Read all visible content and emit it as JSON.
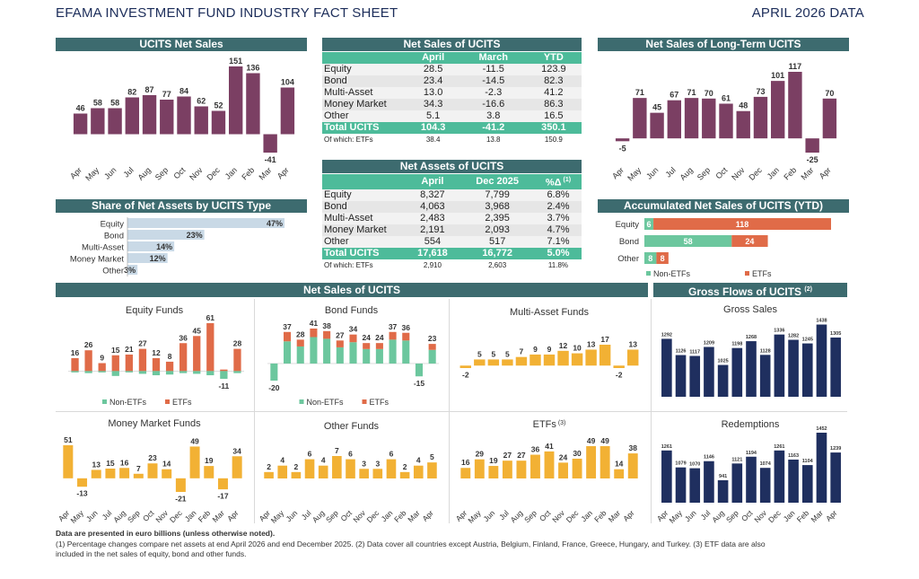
{
  "header": {
    "title": "EFAMA INVESTMENT FUND INDUSTRY FACT SHEET",
    "date": "APRIL 2026 DATA"
  },
  "colors": {
    "purple": "#7b3f63",
    "teal": "#3d6b6f",
    "green": "#6cc79e",
    "orange": "#e06b48",
    "yellow": "#f2b134",
    "navy": "#1f2f5f",
    "share_bar": "#c9d9e6"
  },
  "months": [
    "Apr",
    "May",
    "Jun",
    "Jul",
    "Aug",
    "Sep",
    "Oct",
    "Nov",
    "Dec",
    "Jan",
    "Feb",
    "Mar",
    "Apr"
  ],
  "ucits_net_sales": {
    "title": "UCITS Net Sales",
    "chart_data": {
      "type": "bar",
      "categories": [
        "Apr",
        "May",
        "Jun",
        "Jul",
        "Aug",
        "Sep",
        "Oct",
        "Nov",
        "Dec",
        "Jan",
        "Feb",
        "Mar",
        "Apr"
      ],
      "values": [
        46,
        58,
        58,
        82,
        87,
        77,
        84,
        62,
        52,
        151,
        136,
        -41,
        104
      ]
    }
  },
  "long_term_net_sales": {
    "title": "Net Sales of Long-Term UCITS",
    "chart_data": {
      "type": "bar",
      "categories": [
        "Apr",
        "May",
        "Jun",
        "Jul",
        "Aug",
        "Sep",
        "Oct",
        "Nov",
        "Dec",
        "Jan",
        "Feb",
        "Mar",
        "Apr"
      ],
      "values": [
        -5,
        71,
        45,
        67,
        71,
        70,
        61,
        48,
        73,
        101,
        117,
        -25,
        70
      ]
    }
  },
  "net_sales_table": {
    "title": "Net Sales of UCITS",
    "columns": [
      "",
      "April",
      "March",
      "YTD"
    ],
    "rows": [
      [
        "Equity",
        "28.5",
        "-11.5",
        "123.9"
      ],
      [
        "Bond",
        "23.4",
        "-14.5",
        "82.3"
      ],
      [
        "Multi-Asset",
        "13.0",
        "-2.3",
        "41.2"
      ],
      [
        "Money Market",
        "34.3",
        "-16.6",
        "86.3"
      ],
      [
        "Other",
        "5.1",
        "3.8",
        "16.5"
      ]
    ],
    "total": [
      "Total UCITS",
      "104.3",
      "-41.2",
      "350.1"
    ],
    "of_which": [
      "Of which: ETFs",
      "38.4",
      "13.8",
      "150.9"
    ]
  },
  "net_assets_table": {
    "title": "Net Assets of UCITS",
    "columns": [
      "",
      "April",
      "Dec 2025",
      "%Δ",
      "(1)"
    ],
    "rows": [
      [
        "Equity",
        "8,327",
        "7,799",
        "6.8%"
      ],
      [
        "Bond",
        "4,063",
        "3,968",
        "2.4%"
      ],
      [
        "Multi-Asset",
        "2,483",
        "2,395",
        "3.7%"
      ],
      [
        "Money Market",
        "2,191",
        "2,093",
        "4.7%"
      ],
      [
        "Other",
        "554",
        "517",
        "7.1%"
      ]
    ],
    "total": [
      "Total UCITS",
      "17,618",
      "16,772",
      "5.0%"
    ],
    "of_which": [
      "Of which: ETFs",
      "2,910",
      "2,603",
      "11.8%"
    ]
  },
  "share_of_net_assets": {
    "title": "Share of Net Assets by UCITS Type",
    "chart_data": {
      "type": "bar",
      "categories": [
        "Equity",
        "Bond",
        "Multi-Asset",
        "Money Market",
        "Other"
      ],
      "values": [
        47,
        23,
        14,
        12,
        3
      ],
      "labels": [
        "47%",
        "23%",
        "14%",
        "12%",
        "3%"
      ]
    }
  },
  "accumulated_net_sales": {
    "title": "Accumulated Net Sales of UCITS (YTD)",
    "chart_data": {
      "type": "bar",
      "categories": [
        "Equity",
        "Bond",
        "Other"
      ],
      "series": [
        {
          "name": "Non-ETFs",
          "values": [
            6,
            58,
            8
          ]
        },
        {
          "name": "ETFs",
          "values": [
            118,
            24,
            8
          ]
        }
      ]
    },
    "legend": [
      "Non-ETFs",
      "ETFs"
    ]
  },
  "net_sales_section_title": "Net Sales of UCITS",
  "gross_flows": {
    "title": "Gross Flows of UCITS",
    "title_note": "(2)"
  },
  "small_charts": [
    {
      "title": "Equity Funds",
      "chart_data": {
        "type": "bar",
        "categories": [
          "Apr",
          "May",
          "Jun",
          "Jul",
          "Aug",
          "Sep",
          "Oct",
          "Nov",
          "Dec",
          "Jan",
          "Feb",
          "Mar",
          "Apr"
        ],
        "totals": [
          16,
          26,
          9,
          15,
          21,
          27,
          12,
          8,
          36,
          45,
          61,
          -11,
          28
        ],
        "series": [
          {
            "name": "Non-ETFs",
            "values": [
              -2,
              -3,
              -2,
              -7,
              -2,
              -4,
              -6,
              -5,
              -3,
              -4,
              -6,
              -11,
              -3
            ]
          },
          {
            "name": "ETFs",
            "values": [
              18,
              29,
              11,
              22,
              23,
              31,
              18,
              13,
              39,
              49,
              67,
              2,
              31
            ]
          }
        ]
      },
      "legend": [
        "Non-ETFs",
        "ETFs"
      ]
    },
    {
      "title": "Bond Funds",
      "chart_data": {
        "type": "bar",
        "categories": [
          "Apr",
          "May",
          "Jun",
          "Jul",
          "Aug",
          "Sep",
          "Oct",
          "Nov",
          "Dec",
          "Jan",
          "Feb",
          "Mar",
          "Apr"
        ],
        "totals": [
          -20,
          37,
          28,
          41,
          38,
          27,
          34,
          24,
          24,
          37,
          36,
          -15,
          23
        ],
        "series": [
          {
            "name": "Non-ETFs",
            "values": [
              -20,
              26,
              20,
              31,
              29,
              19,
              25,
              17,
              17,
              28,
              27,
              -15,
              16
            ]
          },
          {
            "name": "ETFs",
            "values": [
              0,
              11,
              8,
              10,
              9,
              8,
              9,
              7,
              7,
              9,
              9,
              0,
              7
            ]
          }
        ]
      },
      "legend": [
        "Non-ETFs",
        "ETFs"
      ]
    },
    {
      "title": "Multi-Asset Funds",
      "chart_data": {
        "type": "bar",
        "categories": [
          "Apr",
          "May",
          "Jun",
          "Jul",
          "Aug",
          "Sep",
          "Oct",
          "Nov",
          "Dec",
          "Jan",
          "Feb",
          "Mar",
          "Apr"
        ],
        "values": [
          -2,
          5,
          5,
          5,
          7,
          9,
          9,
          12,
          10,
          13,
          17,
          -2,
          13
        ]
      }
    },
    {
      "title": "Money Market Funds",
      "chart_data": {
        "type": "bar",
        "categories": [
          "Apr",
          "May",
          "Jun",
          "Jul",
          "Aug",
          "Sep",
          "Oct",
          "Nov",
          "Dec",
          "Jan",
          "Feb",
          "Mar",
          "Apr"
        ],
        "values": [
          51,
          -13,
          13,
          15,
          16,
          7,
          23,
          14,
          -21,
          49,
          19,
          -17,
          34
        ]
      }
    },
    {
      "title": "Other Funds",
      "chart_data": {
        "type": "bar",
        "categories": [
          "Apr",
          "May",
          "Jun",
          "Jul",
          "Aug",
          "Sep",
          "Oct",
          "Nov",
          "Dec",
          "Jan",
          "Feb",
          "Mar",
          "Apr"
        ],
        "values": [
          2,
          4,
          2,
          6,
          4,
          7,
          6,
          3,
          3,
          6,
          2,
          4,
          5
        ]
      }
    },
    {
      "title": "ETFs",
      "title_note": "(3)",
      "chart_data": {
        "type": "bar",
        "categories": [
          "Apr",
          "May",
          "Jun",
          "Jul",
          "Aug",
          "Sep",
          "Oct",
          "Nov",
          "Dec",
          "Jan",
          "Feb",
          "Mar",
          "Apr"
        ],
        "values": [
          16,
          29,
          19,
          27,
          27,
          36,
          41,
          24,
          30,
          49,
          49,
          14,
          38
        ]
      }
    },
    {
      "title": "Gross Sales",
      "chart_data": {
        "type": "bar",
        "categories": [
          "Apr",
          "May",
          "Jun",
          "Jul",
          "Aug",
          "Sep",
          "Oct",
          "Nov",
          "Dec",
          "Jan",
          "Feb",
          "Mar",
          "Apr"
        ],
        "values": [
          1292,
          1126,
          1117,
          1209,
          1025,
          1198,
          1268,
          1128,
          1336,
          1282,
          1245,
          1438,
          1305
        ]
      }
    },
    {
      "title": "Redemptions",
      "chart_data": {
        "type": "bar",
        "categories": [
          "Apr",
          "May",
          "Jun",
          "Jul",
          "Aug",
          "Sep",
          "Oct",
          "Nov",
          "Dec",
          "Jan",
          "Feb",
          "Mar",
          "Apr"
        ],
        "values": [
          1261,
          1079,
          1070,
          1146,
          941,
          1121,
          1194,
          1074,
          1261,
          1163,
          1104,
          1452,
          1239
        ]
      }
    }
  ],
  "footer": {
    "note_bold": "Data are presented in euro billions (unless otherwise noted).",
    "note_1": "(1) Percentage changes compare net assets at end April 2026 and end December 2025. (2) Data cover all countries except Austria, Belgium, Finland, France, Greece, Hungary, and Turkey. (3) ETF data are also",
    "note_2": "included in the net sales of equity, bond and other funds."
  }
}
